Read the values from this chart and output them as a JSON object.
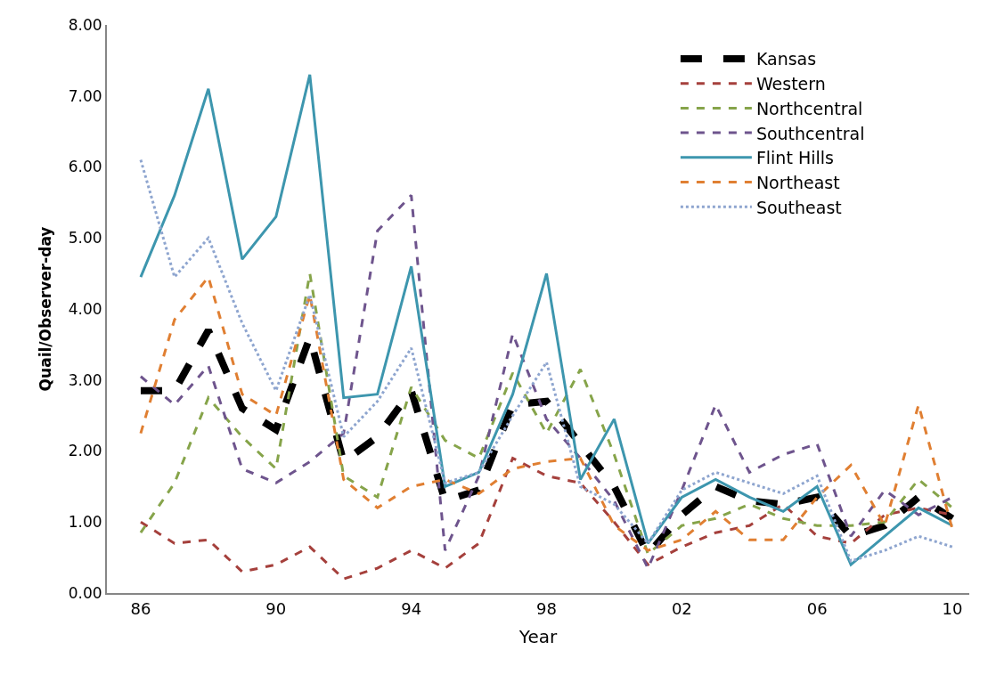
{
  "chart_data": {
    "type": "line",
    "xlabel": "Year",
    "ylabel": "Quail/Observer-day",
    "x": [
      1986,
      1987,
      1988,
      1989,
      1990,
      1991,
      1992,
      1993,
      1994,
      1995,
      1996,
      1997,
      1998,
      1999,
      2000,
      2001,
      2002,
      2003,
      2004,
      2005,
      2006,
      2007,
      2008,
      2009,
      2010
    ],
    "xlim": [
      1985,
      2010.5
    ],
    "xticks": [
      {
        "value": 1986,
        "label": "86"
      },
      {
        "value": 1990,
        "label": "90"
      },
      {
        "value": 1994,
        "label": "94"
      },
      {
        "value": 1998,
        "label": "98"
      },
      {
        "value": 2002,
        "label": "02"
      },
      {
        "value": 2006,
        "label": "06"
      },
      {
        "value": 2010,
        "label": "10"
      }
    ],
    "ylim": [
      0,
      8
    ],
    "yticks": [
      {
        "value": 0,
        "label": "0.00"
      },
      {
        "value": 1,
        "label": "1.00"
      },
      {
        "value": 2,
        "label": "2.00"
      },
      {
        "value": 3,
        "label": "3.00"
      },
      {
        "value": 4,
        "label": "4.00"
      },
      {
        "value": 5,
        "label": "5.00"
      },
      {
        "value": 6,
        "label": "6.00"
      },
      {
        "value": 7,
        "label": "7.00"
      },
      {
        "value": 8,
        "label": "8.00"
      }
    ],
    "legend": "top right",
    "marker": "none",
    "series": [
      {
        "name": "Kansas",
        "color": "#000000",
        "line_style": "dashed",
        "values": [
          2.85,
          2.85,
          3.7,
          2.6,
          2.3,
          3.6,
          1.85,
          2.2,
          2.85,
          1.3,
          1.45,
          2.65,
          2.7,
          2.1,
          1.5,
          0.55,
          1.1,
          1.5,
          1.3,
          1.25,
          1.35,
          0.8,
          0.95,
          1.35,
          1.05
        ]
      },
      {
        "name": "Western",
        "color": "#a5403c",
        "line_style": "dashed",
        "values": [
          1.0,
          0.7,
          0.75,
          0.3,
          0.4,
          0.65,
          0.2,
          0.35,
          0.6,
          0.35,
          0.7,
          1.9,
          1.65,
          1.55,
          1.0,
          0.4,
          0.65,
          0.85,
          0.95,
          1.25,
          0.8,
          0.7,
          1.1,
          1.2,
          1.1
        ]
      },
      {
        "name": "Northcentral",
        "color": "#86a44a",
        "line_style": "dashed",
        "values": [
          0.85,
          1.55,
          2.75,
          2.2,
          1.75,
          4.5,
          1.65,
          1.35,
          2.9,
          2.15,
          1.9,
          3.1,
          2.25,
          3.15,
          1.95,
          0.55,
          0.95,
          1.05,
          1.25,
          1.05,
          0.95,
          0.95,
          1.0,
          1.6,
          1.2
        ]
      },
      {
        "name": "Southcentral",
        "color": "#6e548d",
        "line_style": "dashed",
        "values": [
          3.05,
          2.65,
          3.2,
          1.75,
          1.55,
          1.85,
          2.25,
          5.1,
          5.6,
          0.6,
          1.65,
          3.65,
          2.45,
          1.9,
          1.3,
          0.35,
          1.45,
          2.65,
          1.7,
          1.95,
          2.1,
          0.8,
          1.45,
          1.1,
          1.35
        ]
      },
      {
        "name": "Flint Hills",
        "color": "#3d96ae",
        "line_style": "solid",
        "values": [
          4.45,
          5.6,
          7.1,
          4.7,
          5.3,
          7.3,
          2.75,
          2.8,
          4.6,
          1.5,
          1.7,
          2.8,
          4.5,
          1.6,
          2.45,
          0.7,
          1.35,
          1.6,
          1.35,
          1.15,
          1.5,
          0.4,
          0.8,
          1.2,
          0.95
        ]
      },
      {
        "name": "Northeast",
        "color": "#e07f32",
        "line_style": "dashed",
        "values": [
          2.25,
          3.85,
          4.45,
          2.8,
          2.5,
          4.2,
          1.6,
          1.2,
          1.5,
          1.6,
          1.4,
          1.75,
          1.85,
          1.9,
          0.95,
          0.6,
          0.75,
          1.15,
          0.75,
          0.75,
          1.35,
          1.8,
          0.95,
          2.65,
          0.9
        ]
      },
      {
        "name": "Southeast",
        "color": "#8ea5cf",
        "line_style": "dotted",
        "values": [
          6.1,
          4.45,
          5.0,
          3.8,
          2.85,
          4.2,
          2.2,
          2.7,
          3.45,
          1.55,
          1.7,
          2.5,
          3.25,
          1.5,
          1.25,
          0.7,
          1.45,
          1.7,
          1.55,
          1.4,
          1.65,
          0.45,
          0.6,
          0.8,
          0.65
        ]
      }
    ]
  }
}
